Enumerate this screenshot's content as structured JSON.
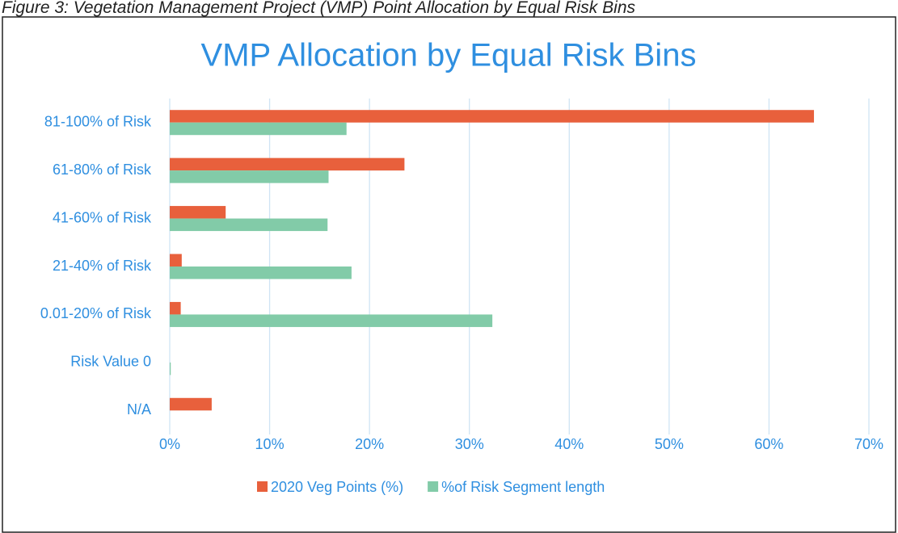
{
  "chart_data": {
    "type": "hbar",
    "caption": "Figure 3: Vegetation Management Project (VMP) Point Allocation by Equal Risk Bins",
    "title": "VMP Allocation by Equal Risk Bins",
    "categories": [
      "81-100% of Risk",
      "61-80% of Risk",
      "41-60% of Risk",
      "21-40% of Risk",
      "0.01-20% of Risk",
      "Risk Value 0",
      "N/A"
    ],
    "series": [
      {
        "name": "2020 Veg Points (%)",
        "color": "#e8603c",
        "values": [
          64.5,
          23.5,
          5.6,
          1.2,
          1.1,
          0,
          4.2
        ]
      },
      {
        "name": "%of Risk Segment length",
        "color": "#82cba8",
        "values": [
          17.7,
          15.9,
          15.8,
          18.2,
          32.3,
          0.1,
          0
        ]
      }
    ],
    "xlim": [
      0,
      70
    ],
    "xticks": [
      {
        "value": 0,
        "label": "0%"
      },
      {
        "value": 10,
        "label": "10%"
      },
      {
        "value": 20,
        "label": "20%"
      },
      {
        "value": 30,
        "label": "30%"
      },
      {
        "value": 40,
        "label": "40%"
      },
      {
        "value": 50,
        "label": "50%"
      },
      {
        "value": 60,
        "label": "60%"
      },
      {
        "value": 70,
        "label": "70%"
      }
    ],
    "grid": true,
    "legend": "bottom"
  }
}
